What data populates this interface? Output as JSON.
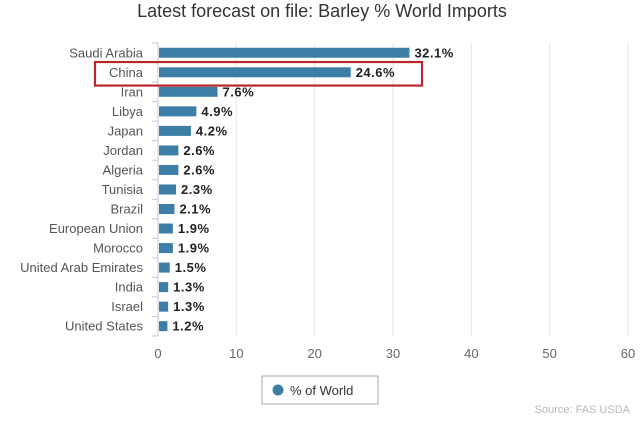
{
  "chart_data": {
    "type": "bar",
    "orientation": "horizontal",
    "title": "Latest forecast on file: Barley % World Imports",
    "categories": [
      "Saudi Arabia",
      "China",
      "Iran",
      "Libya",
      "Japan",
      "Jordan",
      "Algeria",
      "Tunisia",
      "Brazil",
      "European Union",
      "Morocco",
      "United Arab Emirates",
      "India",
      "Israel",
      "United States"
    ],
    "value_labels": [
      "32.1%",
      "24.6%",
      "7.6%",
      "4.9%",
      "4.2%",
      "2.6%",
      "2.6%",
      "2.3%",
      "2.1%",
      "1.9%",
      "1.9%",
      "1.5%",
      "1.3%",
      "1.3%",
      "1.2%"
    ],
    "series": [
      {
        "name": "% of World",
        "values": [
          32.1,
          24.6,
          7.6,
          4.9,
          4.2,
          2.6,
          2.6,
          2.3,
          2.1,
          1.9,
          1.9,
          1.5,
          1.3,
          1.3,
          1.2
        ]
      }
    ],
    "xlim": [
      0,
      60
    ],
    "xticks": [
      "0",
      "10",
      "20",
      "30",
      "40",
      "50",
      "60"
    ],
    "xlabel": "",
    "ylabel": "",
    "grid": true,
    "legend": "bottom-center",
    "highlighted_category": "China",
    "colors": {
      "bar": "#3d7ea6",
      "highlight": "#b8282b"
    },
    "source": "Source: FAS USDA"
  }
}
